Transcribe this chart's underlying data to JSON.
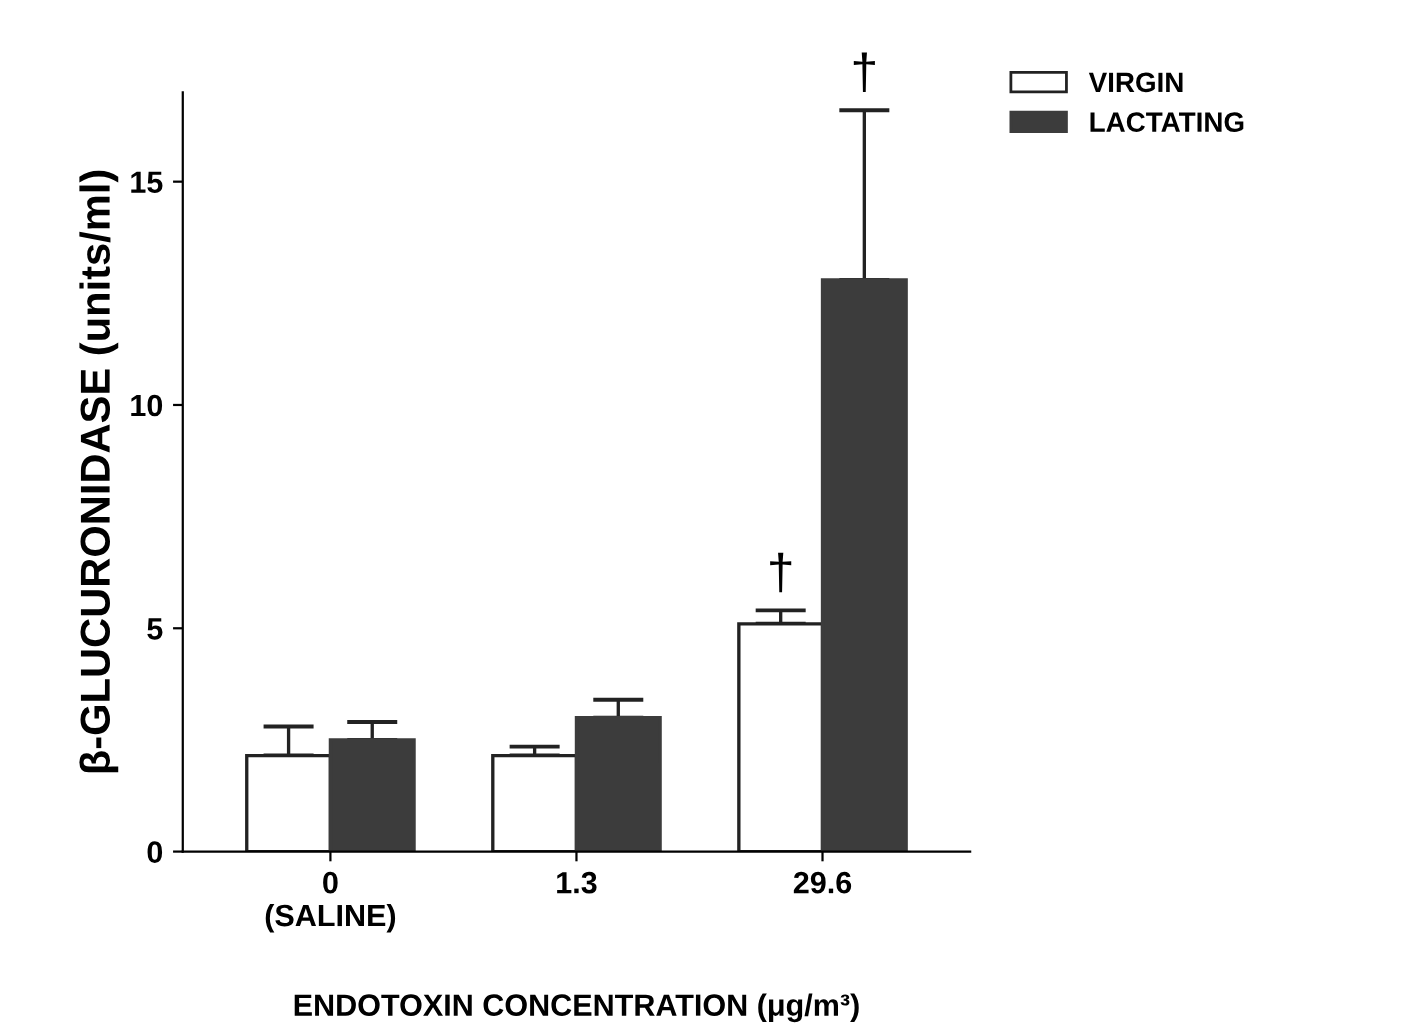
{
  "chart_data": {
    "type": "bar",
    "xlabel": "ENDOTOXIN CONCENTRATION (μg/m³)",
    "ylabel": "β-GLUCURONIDASE (units/ml)",
    "categories": [
      "0\n(SALINE)",
      "1.3",
      "29.6"
    ],
    "series": [
      {
        "name": "VIRGIN",
        "color": "#ffffff",
        "values": [
          2.15,
          2.15,
          5.1
        ],
        "errors": [
          [
            2.15,
            2.8
          ],
          [
            2.15,
            2.35
          ],
          [
            5.1,
            5.4
          ]
        ]
      },
      {
        "name": "LACTATING",
        "color": "#3c3c3c",
        "values": [
          2.5,
          3.0,
          12.8
        ],
        "errors": [
          [
            2.5,
            2.9
          ],
          [
            3.0,
            3.4
          ],
          [
            12.8,
            16.6
          ]
        ]
      }
    ],
    "ylim": [
      0,
      17
    ],
    "yticks": [
      0,
      5,
      10,
      15
    ],
    "grid": false,
    "legend": "top right",
    "annotations": [
      {
        "text": "†",
        "x": "29.6",
        "y": 5.4
      },
      "†"
    ]
  }
}
